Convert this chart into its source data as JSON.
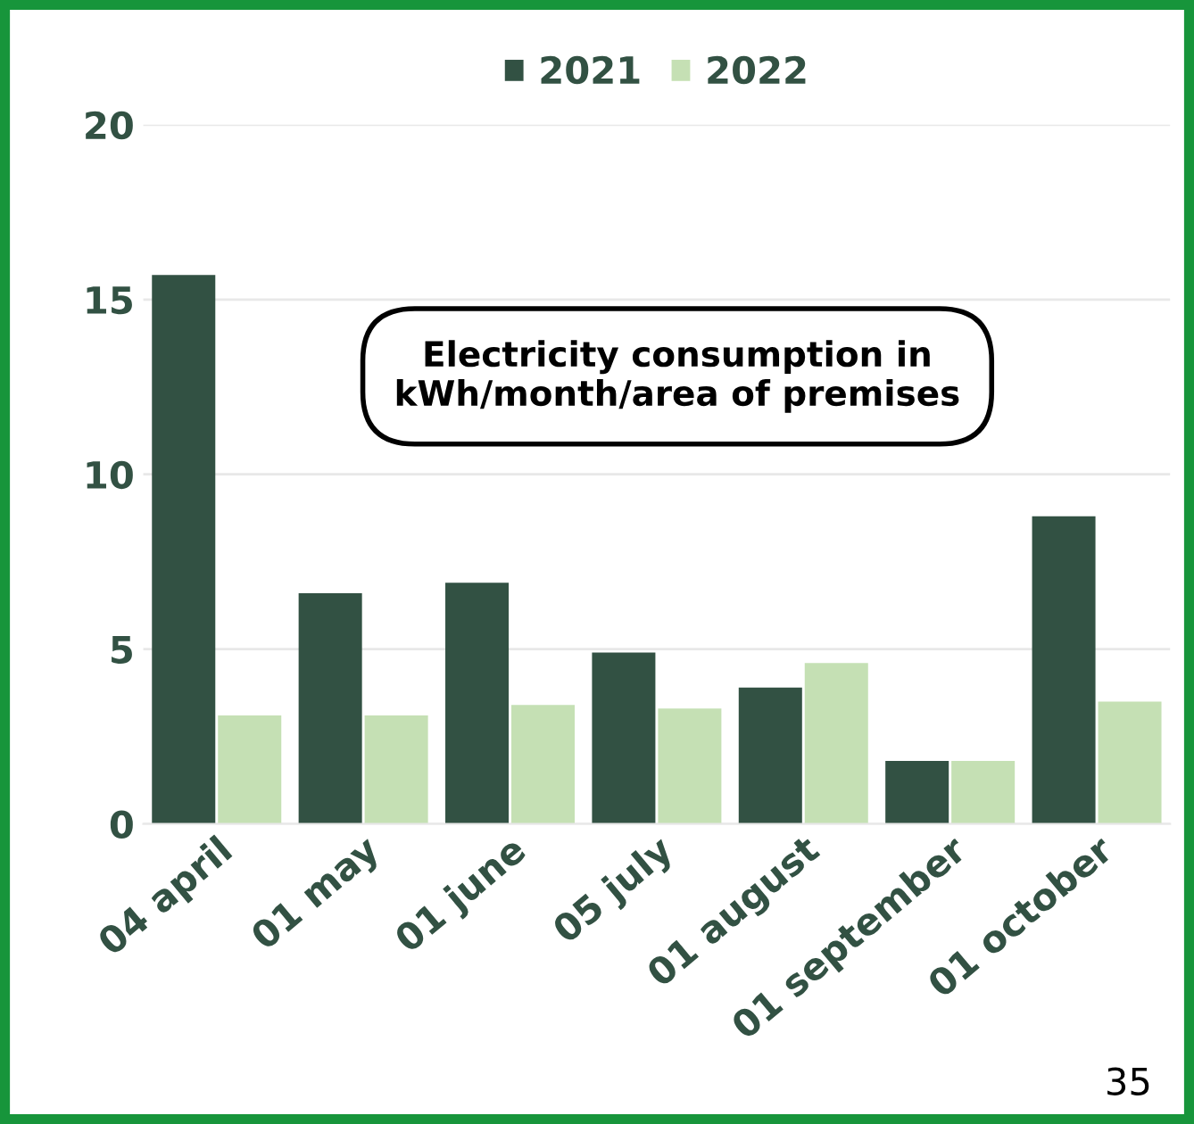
{
  "chart_data": {
    "type": "bar",
    "categories": [
      "04 april",
      "01 may",
      "01 june",
      "05 july",
      "01 august",
      "01 september",
      "01 october"
    ],
    "series": [
      {
        "name": "2021",
        "color": "#325143",
        "values": [
          15.7,
          6.6,
          6.9,
          4.9,
          3.9,
          1.8,
          8.8
        ]
      },
      {
        "name": "2022",
        "color": "#c5e0b4",
        "values": [
          3.1,
          3.1,
          3.4,
          3.3,
          4.6,
          1.8,
          3.5
        ]
      }
    ],
    "ylim": [
      0,
      20
    ],
    "yticks": [
      0,
      5,
      10,
      15,
      20
    ],
    "grid": "y",
    "legend": "top",
    "annotations": [
      "Electricity consumption in\nkWh/month/area of premises",
      "35"
    ]
  }
}
